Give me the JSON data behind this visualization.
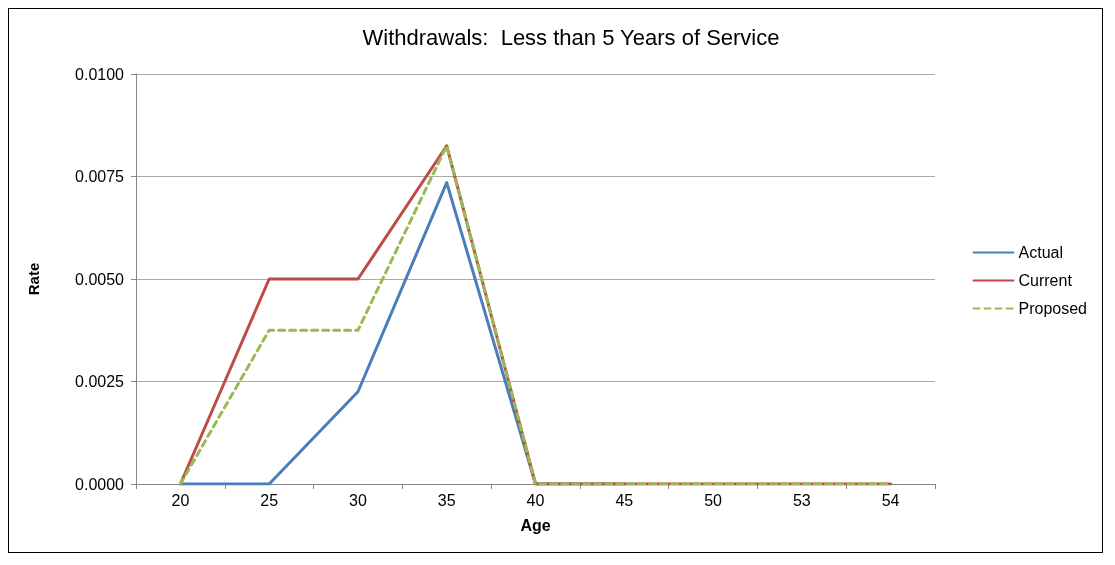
{
  "chart_data": {
    "type": "line",
    "title": "Withdrawals:  Less than 5 Years of Service",
    "xlabel": "Age",
    "ylabel": "Rate",
    "categories": [
      "20",
      "25",
      "30",
      "35",
      "40",
      "45",
      "50",
      "53",
      "54"
    ],
    "series": [
      {
        "name": "Actual",
        "color": "#4a7ebb",
        "values": [
          0,
          0,
          0.00225,
          0.00735,
          0,
          0,
          null,
          null,
          null
        ]
      },
      {
        "name": "Current",
        "color": "#be4b48",
        "values": [
          0,
          0.005,
          0.005,
          0.00825,
          0,
          0,
          0,
          0,
          0
        ]
      },
      {
        "name": "Proposed",
        "color": "#98b954",
        "line_style": "dashed",
        "values": [
          0,
          0.00375,
          0.00375,
          0.00825,
          0,
          0,
          0,
          0,
          0
        ]
      }
    ],
    "ylim": [
      0,
      0.01
    ],
    "yticks": [
      {
        "value": 0,
        "label": "0.0000"
      },
      {
        "value": 0.0025,
        "label": "0.0025"
      },
      {
        "value": 0.005,
        "label": "0.0050"
      },
      {
        "value": 0.0075,
        "label": "0.0075"
      },
      {
        "value": 0.01,
        "label": "0.0100"
      }
    ],
    "grid": "y",
    "legend": "right",
    "marker": "none",
    "line_style": "solid"
  }
}
